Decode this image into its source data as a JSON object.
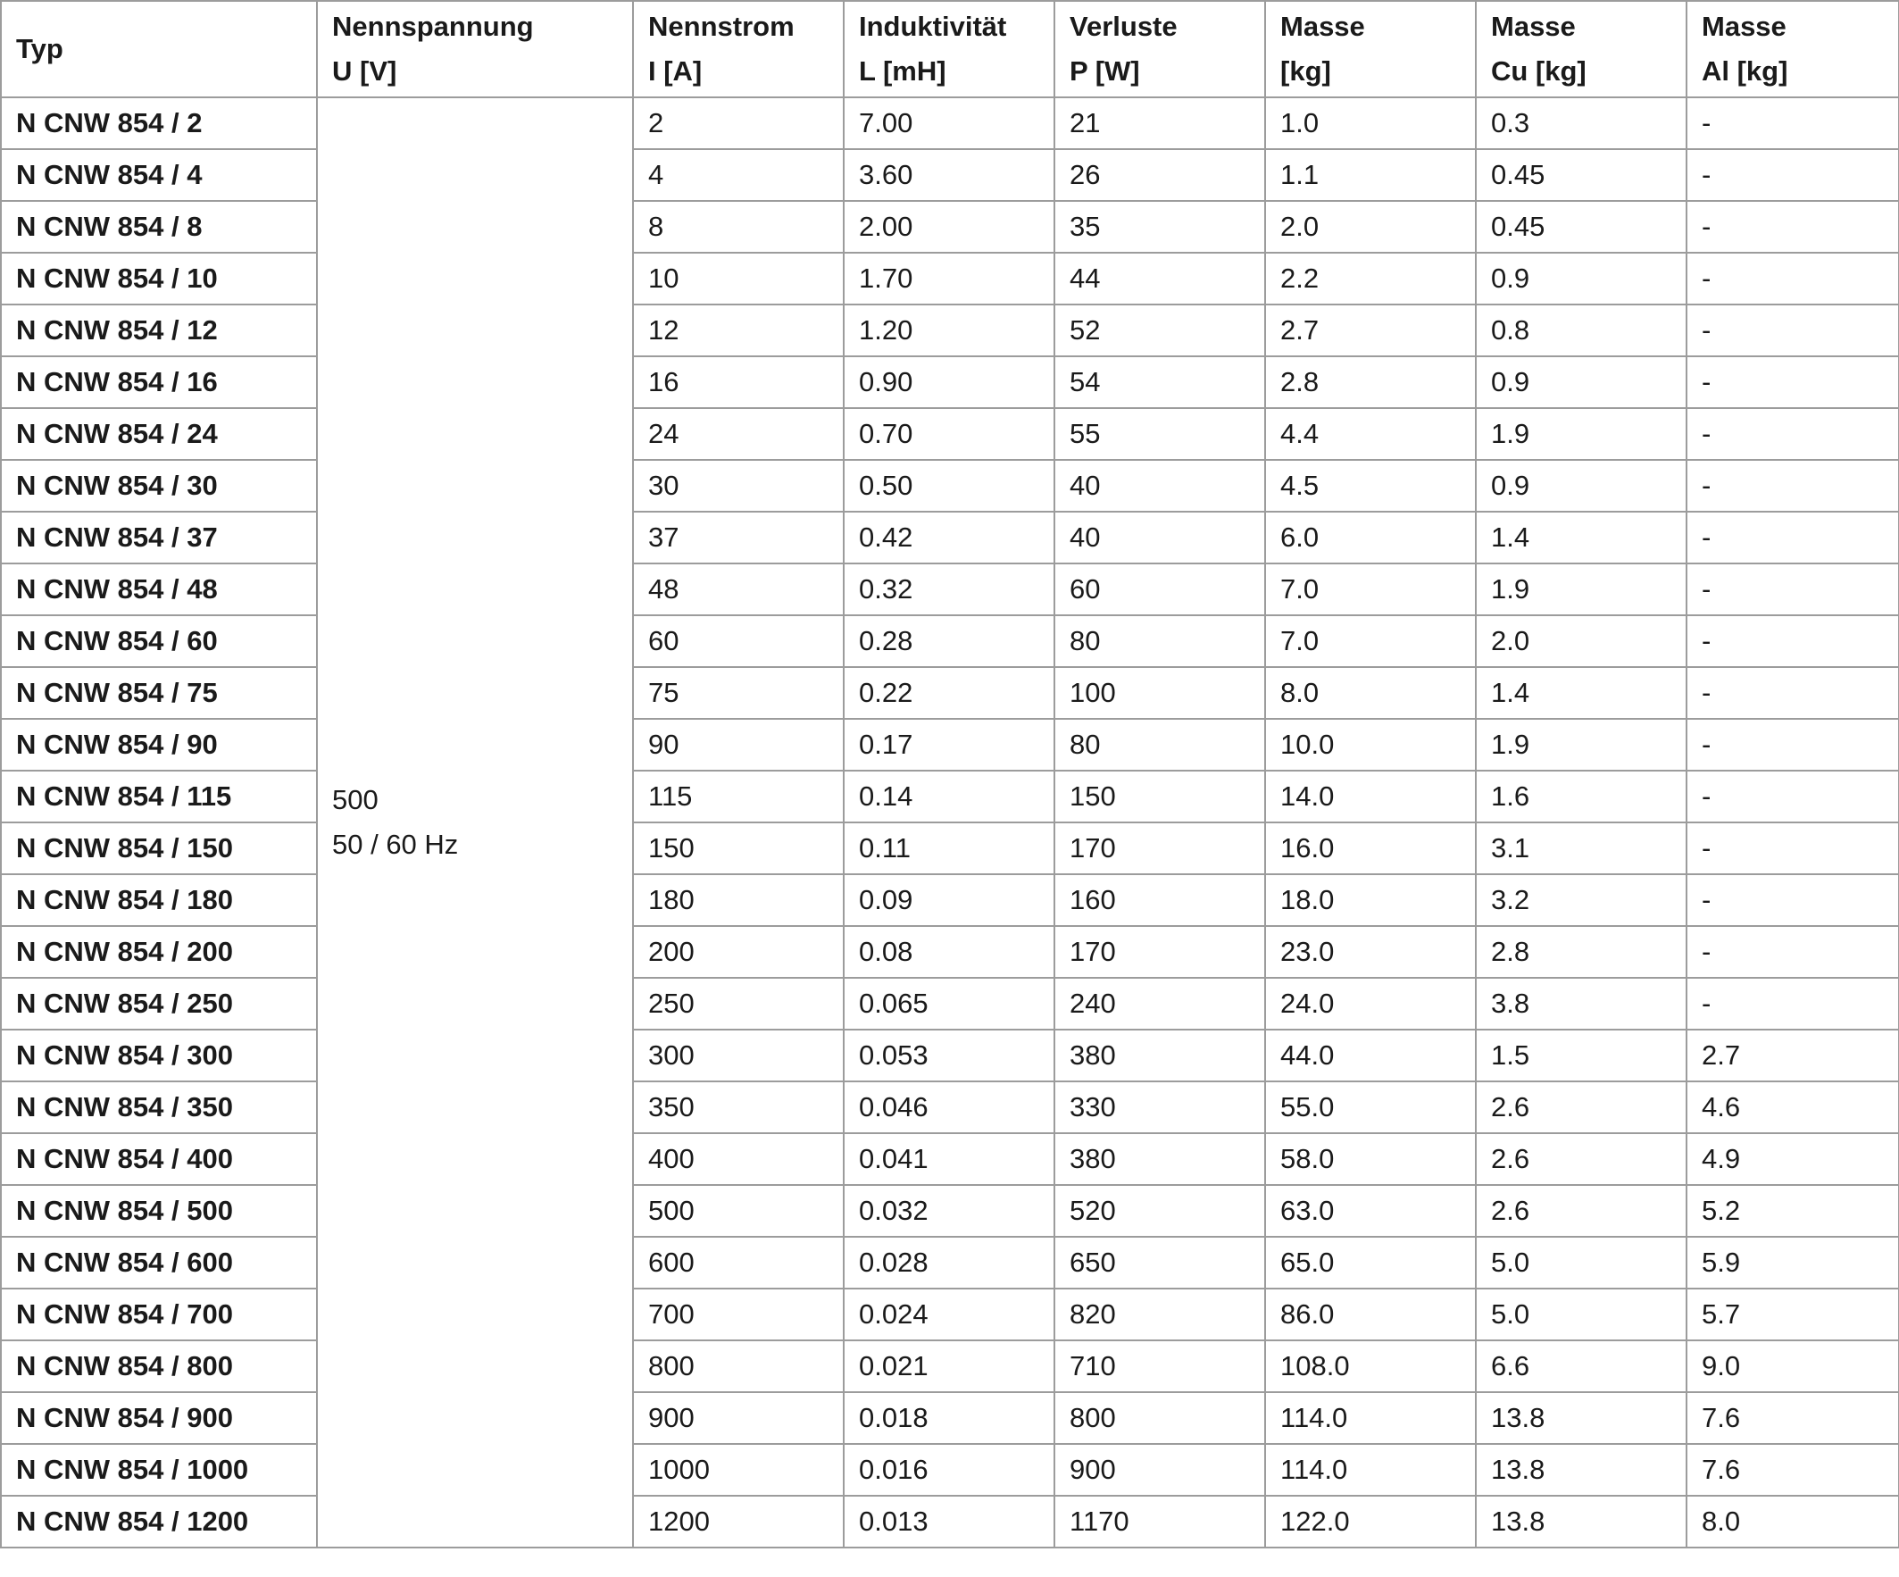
{
  "headers": [
    {
      "l1": "Typ",
      "l2": ""
    },
    {
      "l1": "Nennspannung",
      "l2": "U [V]"
    },
    {
      "l1": "Nennstrom",
      "l2": "I [A]"
    },
    {
      "l1": "Induktivität",
      "l2": "L [mH]"
    },
    {
      "l1": "Verluste",
      "l2": "P [W]"
    },
    {
      "l1": "Masse",
      "l2": "[kg]"
    },
    {
      "l1": "Masse",
      "l2": "Cu [kg]"
    },
    {
      "l1": "Masse",
      "l2": "Al [kg]"
    }
  ],
  "voltage": {
    "value": "500",
    "frequency": "50 / 60 Hz"
  },
  "rows": [
    [
      "N CNW 854 / 2",
      "2",
      "7.00",
      "21",
      "1.0",
      "0.3",
      "-"
    ],
    [
      "N CNW 854 / 4",
      "4",
      "3.60",
      "26",
      "1.1",
      "0.45",
      "-"
    ],
    [
      "N CNW 854 / 8",
      "8",
      "2.00",
      "35",
      "2.0",
      "0.45",
      "-"
    ],
    [
      "N CNW 854 / 10",
      "10",
      "1.70",
      "44",
      "2.2",
      "0.9",
      "-"
    ],
    [
      "N CNW 854 / 12",
      "12",
      "1.20",
      "52",
      "2.7",
      "0.8",
      "-"
    ],
    [
      "N CNW 854 / 16",
      "16",
      "0.90",
      "54",
      "2.8",
      "0.9",
      "-"
    ],
    [
      "N CNW 854 / 24",
      "24",
      "0.70",
      "55",
      "4.4",
      "1.9",
      "-"
    ],
    [
      "N CNW 854 / 30",
      "30",
      "0.50",
      "40",
      "4.5",
      "0.9",
      "-"
    ],
    [
      "N CNW 854 / 37",
      "37",
      "0.42",
      "40",
      "6.0",
      "1.4",
      "-"
    ],
    [
      "N CNW 854 / 48",
      "48",
      "0.32",
      "60",
      "7.0",
      "1.9",
      "-"
    ],
    [
      "N CNW 854 / 60",
      "60",
      "0.28",
      "80",
      "7.0",
      "2.0",
      "-"
    ],
    [
      "N CNW 854 / 75",
      "75",
      "0.22",
      "100",
      "8.0",
      "1.4",
      "-"
    ],
    [
      "N CNW 854 / 90",
      "90",
      "0.17",
      "80",
      "10.0",
      "1.9",
      "-"
    ],
    [
      "N CNW 854 / 115",
      "115",
      "0.14",
      "150",
      "14.0",
      "1.6",
      "-"
    ],
    [
      "N CNW 854 / 150",
      "150",
      "0.11",
      "170",
      "16.0",
      "3.1",
      "-"
    ],
    [
      "N CNW 854 / 180",
      "180",
      "0.09",
      "160",
      "18.0",
      "3.2",
      "-"
    ],
    [
      "N CNW 854 / 200",
      "200",
      "0.08",
      "170",
      "23.0",
      "2.8",
      "-"
    ],
    [
      "N CNW 854 / 250",
      "250",
      "0.065",
      "240",
      "24.0",
      "3.8",
      "-"
    ],
    [
      "N CNW 854 / 300",
      "300",
      "0.053",
      "380",
      "44.0",
      "1.5",
      "2.7"
    ],
    [
      "N CNW 854 / 350",
      "350",
      "0.046",
      "330",
      "55.0",
      "2.6",
      "4.6"
    ],
    [
      "N CNW 854 / 400",
      "400",
      "0.041",
      "380",
      "58.0",
      "2.6",
      "4.9"
    ],
    [
      "N CNW 854 / 500",
      "500",
      "0.032",
      "520",
      "63.0",
      "2.6",
      "5.2"
    ],
    [
      "N CNW 854 / 600",
      "600",
      "0.028",
      "650",
      "65.0",
      "5.0",
      "5.9"
    ],
    [
      "N CNW 854 / 700",
      "700",
      "0.024",
      "820",
      "86.0",
      "5.0",
      "5.7"
    ],
    [
      "N CNW 854 / 800",
      "800",
      "0.021",
      "710",
      "108.0",
      "6.6",
      "9.0"
    ],
    [
      "N CNW 854 / 900",
      "900",
      "0.018",
      "800",
      "114.0",
      "13.8",
      "7.6"
    ],
    [
      "N CNW 854 / 1000",
      "1000",
      "0.016",
      "900",
      "114.0",
      "13.8",
      "7.6"
    ],
    [
      "N CNW 854 / 1200",
      "1200",
      "0.013",
      "1170",
      "122.0",
      "13.8",
      "8.0"
    ]
  ]
}
